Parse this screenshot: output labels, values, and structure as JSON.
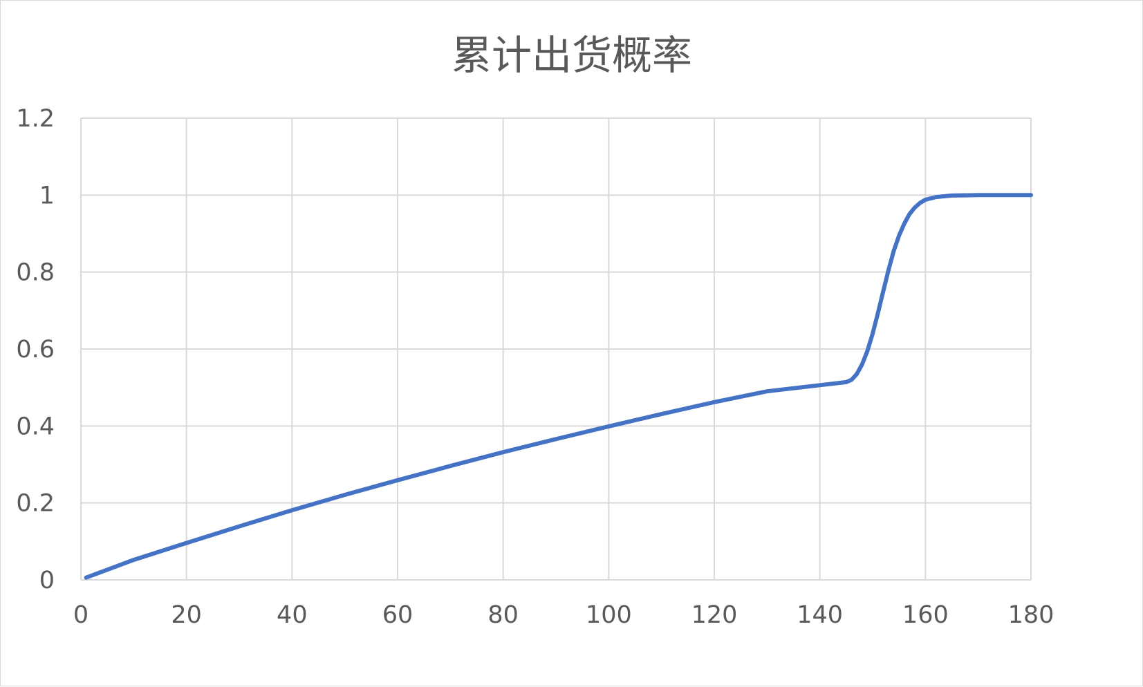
{
  "chart_data": {
    "type": "line",
    "title": "累计出货概率",
    "xlabel": "",
    "ylabel": "",
    "xlim": [
      0,
      180
    ],
    "ylim": [
      0,
      1.2
    ],
    "x_ticks": [
      "0",
      "20",
      "40",
      "60",
      "80",
      "100",
      "120",
      "140",
      "160",
      "180"
    ],
    "y_ticks": [
      "0",
      "0.2",
      "0.4",
      "0.6",
      "0.8",
      "1",
      "1.2"
    ],
    "grid": true,
    "legend": "none",
    "series": [
      {
        "color": "#4472C4",
        "points": [
          [
            1,
            0.006
          ],
          [
            10,
            0.052
          ],
          [
            20,
            0.096
          ],
          [
            30,
            0.139
          ],
          [
            40,
            0.181
          ],
          [
            50,
            0.221
          ],
          [
            60,
            0.259
          ],
          [
            70,
            0.296
          ],
          [
            80,
            0.332
          ],
          [
            90,
            0.366
          ],
          [
            100,
            0.399
          ],
          [
            110,
            0.431
          ],
          [
            120,
            0.462
          ],
          [
            130,
            0.49
          ],
          [
            140,
            0.506
          ],
          [
            145,
            0.514
          ],
          [
            146,
            0.52
          ],
          [
            147,
            0.535
          ],
          [
            148,
            0.56
          ],
          [
            149,
            0.595
          ],
          [
            150,
            0.64
          ],
          [
            151,
            0.693
          ],
          [
            152,
            0.75
          ],
          [
            153,
            0.805
          ],
          [
            154,
            0.855
          ],
          [
            155,
            0.895
          ],
          [
            156,
            0.926
          ],
          [
            157,
            0.951
          ],
          [
            158,
            0.968
          ],
          [
            159,
            0.98
          ],
          [
            160,
            0.988
          ],
          [
            162,
            0.995
          ],
          [
            165,
            0.999
          ],
          [
            170,
            1.0
          ],
          [
            180,
            1.0
          ]
        ]
      }
    ]
  }
}
